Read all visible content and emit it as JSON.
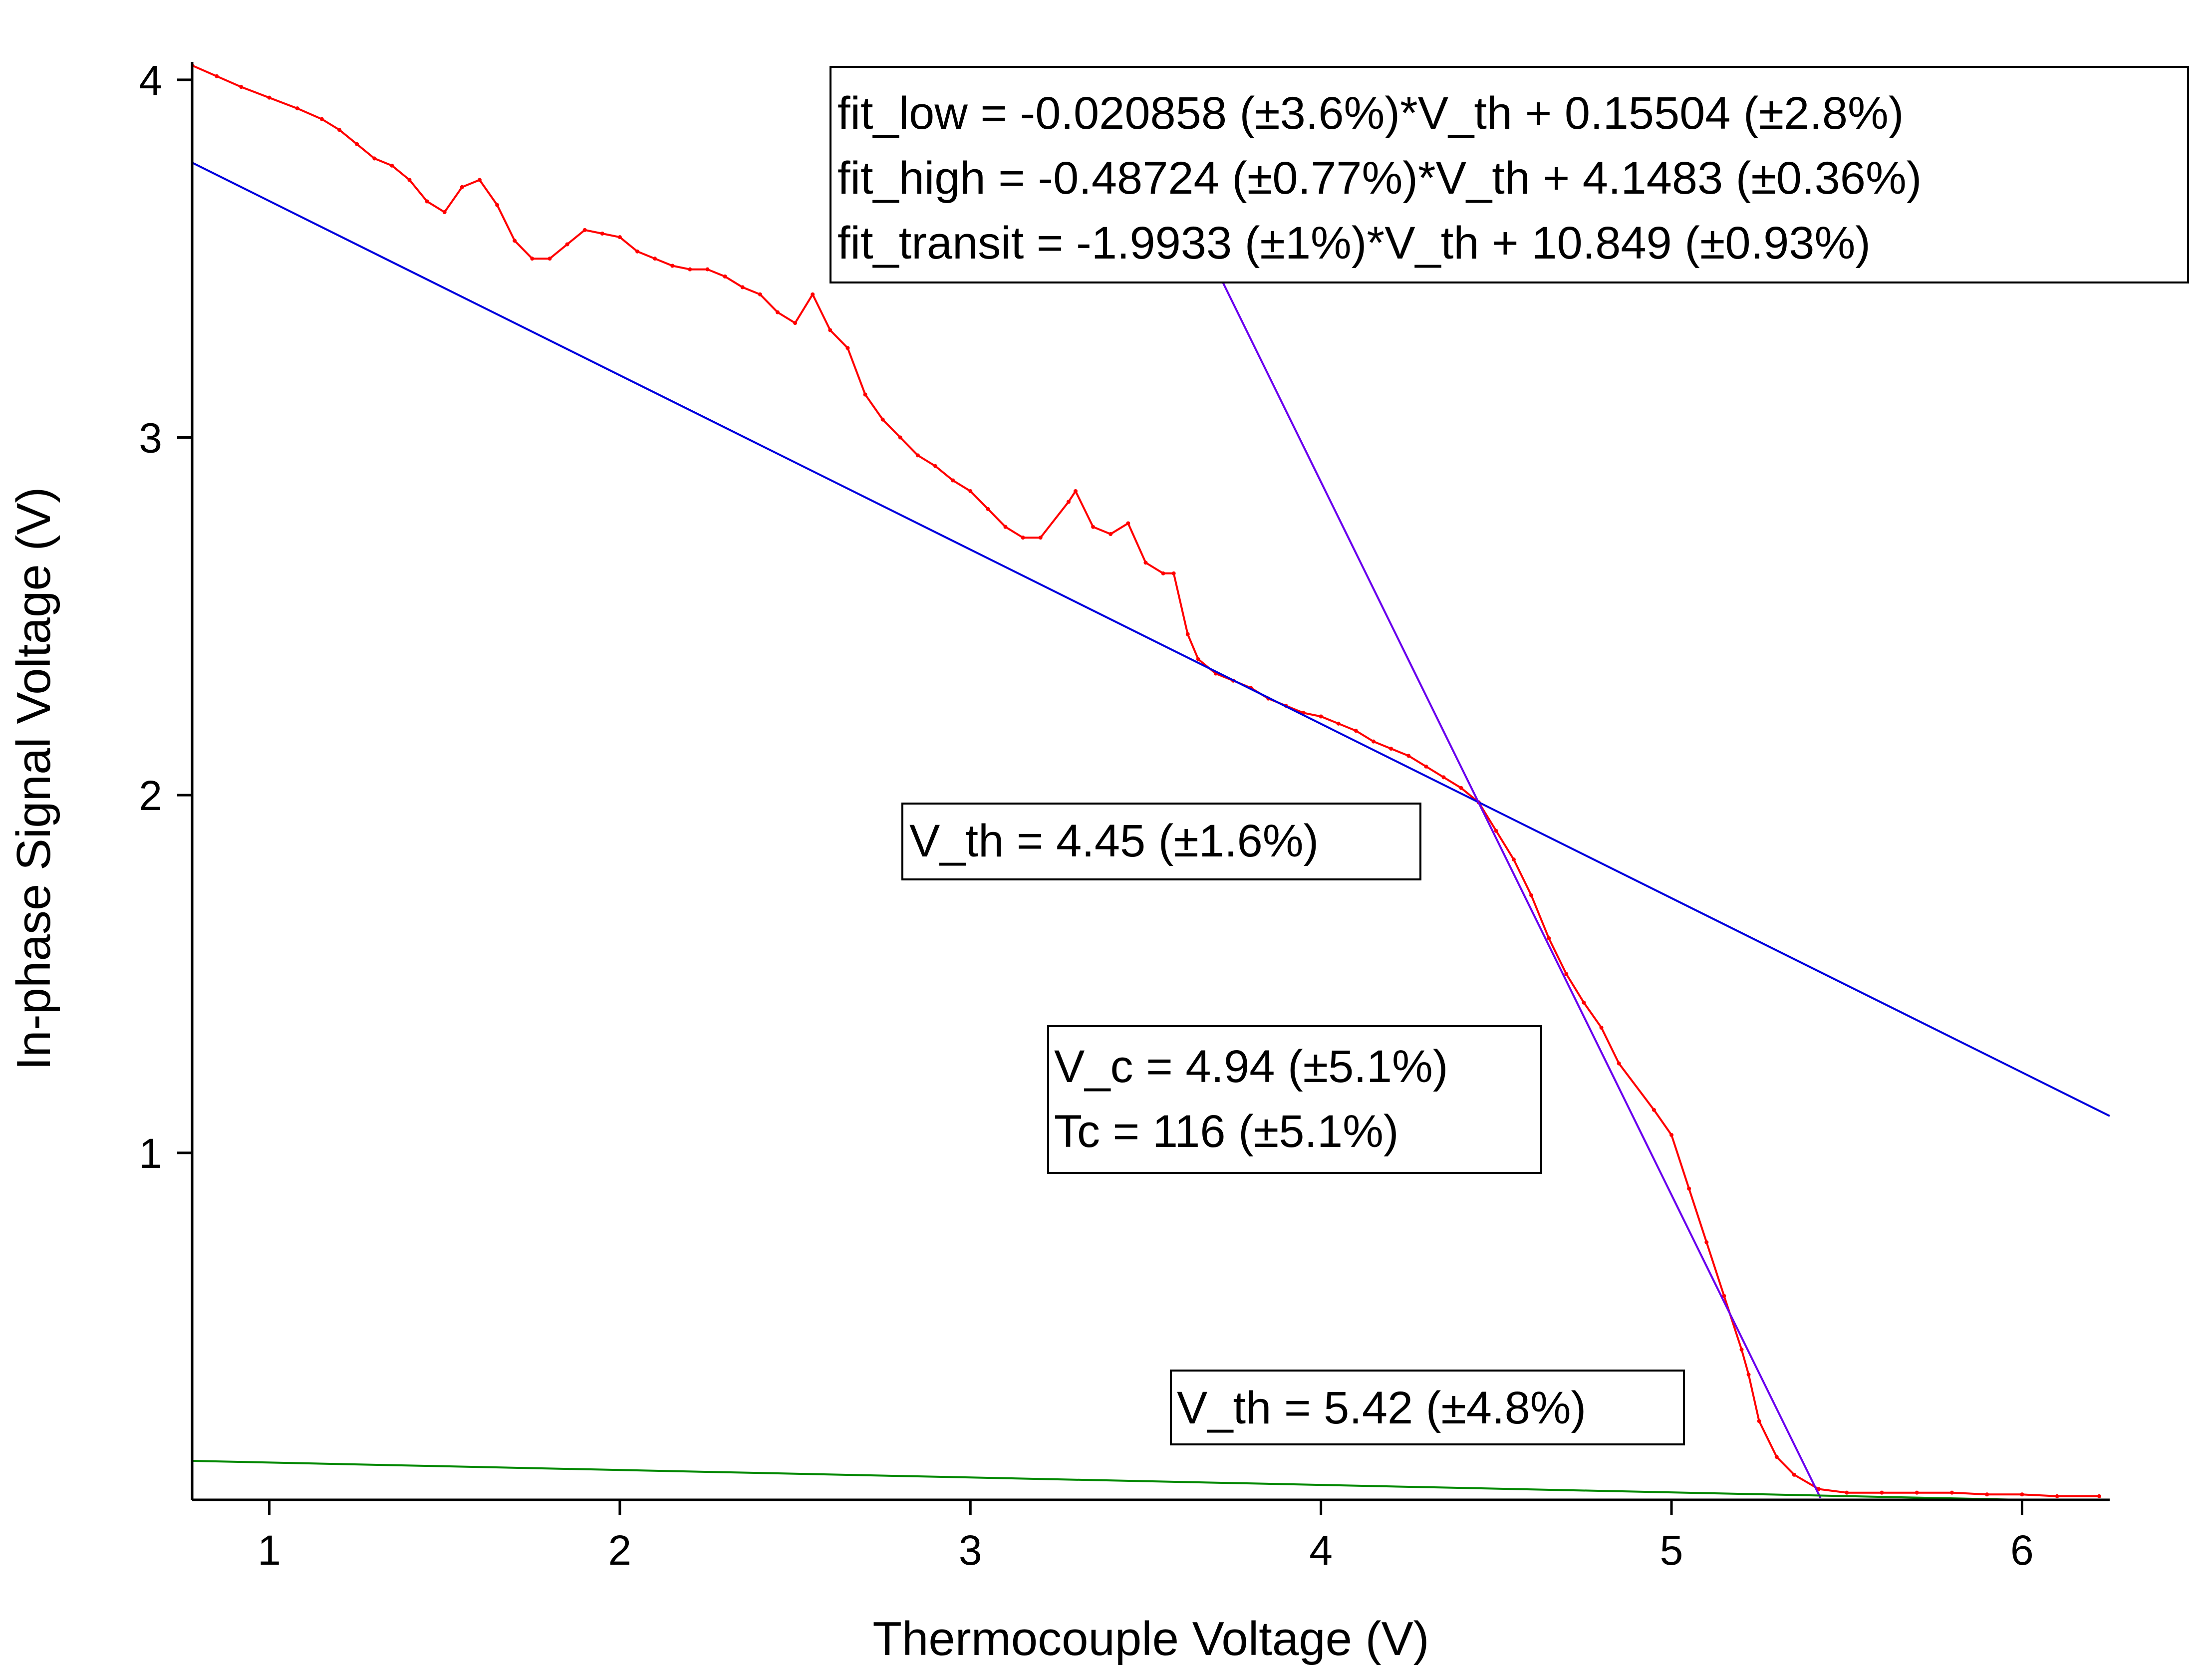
{
  "chart_data": {
    "type": "scatter",
    "xlabel": "Thermocouple Voltage (V)",
    "ylabel": "In-phase Signal Voltage (V)",
    "xlim": [
      0.78,
      6.25
    ],
    "ylim": [
      0.03,
      4.05
    ],
    "x_ticks": [
      1,
      2,
      3,
      4,
      5,
      6
    ],
    "x_tick_labels": [
      "1",
      "2",
      "3",
      "4",
      "5",
      "6"
    ],
    "y_ticks": [
      1,
      2,
      3,
      4
    ],
    "y_tick_labels": [
      "1",
      "2",
      "3",
      "4"
    ],
    "grid": false,
    "colors": {
      "data": "#ff0000",
      "fit_high": "#0000dd",
      "fit_transit": "#6a00ee",
      "fit_low": "#008800",
      "axis": "#000000"
    },
    "series": [
      {
        "kind": "points",
        "color": "#ff0000",
        "points": [
          [
            0.78,
            4.04
          ],
          [
            0.85,
            4.01
          ],
          [
            0.92,
            3.98
          ],
          [
            1.0,
            3.95
          ],
          [
            1.08,
            3.92
          ],
          [
            1.15,
            3.89
          ],
          [
            1.2,
            3.86
          ],
          [
            1.25,
            3.82
          ],
          [
            1.3,
            3.78
          ],
          [
            1.35,
            3.76
          ],
          [
            1.4,
            3.72
          ],
          [
            1.45,
            3.66
          ],
          [
            1.5,
            3.63
          ],
          [
            1.55,
            3.7
          ],
          [
            1.6,
            3.72
          ],
          [
            1.65,
            3.65
          ],
          [
            1.7,
            3.55
          ],
          [
            1.75,
            3.5
          ],
          [
            1.8,
            3.5
          ],
          [
            1.85,
            3.54
          ],
          [
            1.9,
            3.58
          ],
          [
            1.95,
            3.57
          ],
          [
            2.0,
            3.56
          ],
          [
            2.05,
            3.52
          ],
          [
            2.1,
            3.5
          ],
          [
            2.15,
            3.48
          ],
          [
            2.2,
            3.47
          ],
          [
            2.25,
            3.47
          ],
          [
            2.3,
            3.45
          ],
          [
            2.35,
            3.42
          ],
          [
            2.4,
            3.4
          ],
          [
            2.45,
            3.35
          ],
          [
            2.5,
            3.32
          ],
          [
            2.55,
            3.4
          ],
          [
            2.6,
            3.3
          ],
          [
            2.65,
            3.25
          ],
          [
            2.7,
            3.12
          ],
          [
            2.75,
            3.05
          ],
          [
            2.8,
            3.0
          ],
          [
            2.85,
            2.95
          ],
          [
            2.9,
            2.92
          ],
          [
            2.95,
            2.88
          ],
          [
            3.0,
            2.85
          ],
          [
            3.05,
            2.8
          ],
          [
            3.1,
            2.75
          ],
          [
            3.15,
            2.72
          ],
          [
            3.2,
            2.72
          ],
          [
            3.28,
            2.82
          ],
          [
            3.3,
            2.85
          ],
          [
            3.35,
            2.75
          ],
          [
            3.4,
            2.73
          ],
          [
            3.45,
            2.76
          ],
          [
            3.5,
            2.65
          ],
          [
            3.55,
            2.62
          ],
          [
            3.58,
            2.62
          ],
          [
            3.62,
            2.45
          ],
          [
            3.65,
            2.38
          ],
          [
            3.7,
            2.34
          ],
          [
            3.75,
            2.32
          ],
          [
            3.8,
            2.3
          ],
          [
            3.85,
            2.27
          ],
          [
            3.9,
            2.25
          ],
          [
            3.95,
            2.23
          ],
          [
            4.0,
            2.22
          ],
          [
            4.05,
            2.2
          ],
          [
            4.1,
            2.18
          ],
          [
            4.15,
            2.15
          ],
          [
            4.2,
            2.13
          ],
          [
            4.25,
            2.11
          ],
          [
            4.3,
            2.08
          ],
          [
            4.35,
            2.05
          ],
          [
            4.4,
            2.02
          ],
          [
            4.45,
            1.98
          ],
          [
            4.5,
            1.9
          ],
          [
            4.55,
            1.82
          ],
          [
            4.6,
            1.72
          ],
          [
            4.65,
            1.6
          ],
          [
            4.7,
            1.5
          ],
          [
            4.75,
            1.42
          ],
          [
            4.8,
            1.35
          ],
          [
            4.85,
            1.25
          ],
          [
            4.95,
            1.12
          ],
          [
            5.0,
            1.05
          ],
          [
            5.05,
            0.9
          ],
          [
            5.1,
            0.75
          ],
          [
            5.15,
            0.6
          ],
          [
            5.2,
            0.45
          ],
          [
            5.22,
            0.38
          ],
          [
            5.25,
            0.25
          ],
          [
            5.3,
            0.15
          ],
          [
            5.35,
            0.1
          ],
          [
            5.42,
            0.06
          ],
          [
            5.5,
            0.05
          ],
          [
            5.6,
            0.05
          ],
          [
            5.7,
            0.05
          ],
          [
            5.8,
            0.05
          ],
          [
            5.9,
            0.045
          ],
          [
            6.0,
            0.045
          ],
          [
            6.1,
            0.04
          ],
          [
            6.22,
            0.04
          ]
        ]
      },
      {
        "kind": "line",
        "color": "#0000dd",
        "slope": -0.48724,
        "intercept": 4.1483,
        "x_range": [
          0.78,
          6.25
        ]
      },
      {
        "kind": "line",
        "color": "#6a00ee",
        "slope": -1.9933,
        "intercept": 10.849,
        "x_range": [
          3.42,
          5.425
        ]
      },
      {
        "kind": "line",
        "color": "#008800",
        "slope": -0.020858,
        "intercept": 0.15504,
        "x_range": [
          0.78,
          6.25
        ]
      }
    ],
    "annotations": [
      {
        "id": "fit-results",
        "lines": [
          "fit_low = -0.020858 (±3.6%)*V_th + 0.15504 (±2.8%)",
          "fit_high = -0.48724 (±0.77%)*V_th + 4.1483 (±0.36%)",
          "fit_transit = -1.9933 (±1%)*V_th + 10.849 (±0.93%)"
        ]
      },
      {
        "id": "vth-high",
        "lines": [
          "V_th = 4.45 (±1.6%)"
        ]
      },
      {
        "id": "vc-tc",
        "lines": [
          "V_c = 4.94 (±5.1%)",
          "Tc = 116 (±5.1%)"
        ]
      },
      {
        "id": "vth-low",
        "lines": [
          "V_th = 5.42 (±4.8%)"
        ]
      }
    ]
  }
}
